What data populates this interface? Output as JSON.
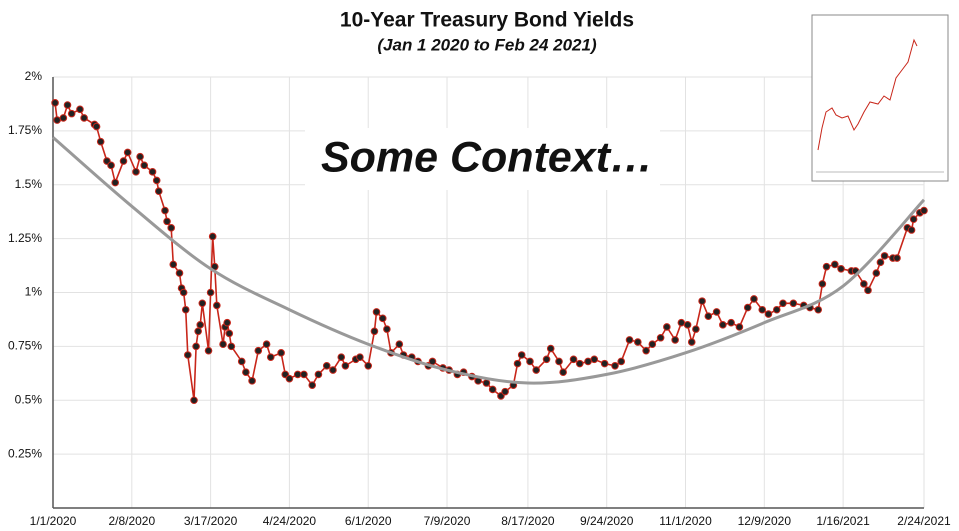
{
  "chart_data": {
    "type": "line",
    "title": "10-Year Treasury Bond Yields",
    "subtitle": "(Jan 1 2020 to Feb 24 2021)",
    "annotation": "Some Context…",
    "xlim": [
      "1/1/2020",
      "2/24/2021"
    ],
    "xticks": [
      "1/1/2020",
      "2/8/2020",
      "3/17/2020",
      "4/24/2020",
      "6/1/2020",
      "7/9/2020",
      "8/17/2020",
      "9/24/2020",
      "11/1/2020",
      "12/9/2020",
      "1/16/2021",
      "2/24/2021"
    ],
    "ylim": [
      0,
      2
    ],
    "yticks": [
      {
        "value": 0.25,
        "label": "0.25%"
      },
      {
        "value": 0.5,
        "label": "0.5%"
      },
      {
        "value": 0.75,
        "label": "0.75%"
      },
      {
        "value": 1,
        "label": "1%"
      },
      {
        "value": 1.25,
        "label": "1.25%"
      },
      {
        "value": 1.5,
        "label": "1.5%"
      },
      {
        "value": 1.75,
        "label": "1.75%"
      },
      {
        "value": 2,
        "label": "2%"
      }
    ],
    "grid": true,
    "series": [
      {
        "color": "#c8261a",
        "markers": true,
        "x": [
          "1/2/2020",
          "1/3/2020",
          "1/6/2020",
          "1/8/2020",
          "1/10/2020",
          "1/14/2020",
          "1/16/2020",
          "1/21/2020",
          "1/22/2020",
          "1/24/2020",
          "1/27/2020",
          "1/29/2020",
          "1/31/2020",
          "2/4/2020",
          "2/6/2020",
          "2/10/2020",
          "2/12/2020",
          "2/14/2020",
          "2/18/2020",
          "2/20/2020",
          "2/21/2020",
          "2/24/2020",
          "2/25/2020",
          "2/27/2020",
          "2/28/2020",
          "3/2/2020",
          "3/3/2020",
          "3/4/2020",
          "3/5/2020",
          "3/6/2020",
          "3/9/2020",
          "3/10/2020",
          "3/11/2020",
          "3/12/2020",
          "3/13/2020",
          "3/16/2020",
          "3/17/2020",
          "3/18/2020",
          "3/19/2020",
          "3/20/2020",
          "3/23/2020",
          "3/24/2020",
          "3/25/2020",
          "3/26/2020",
          "3/27/2020",
          "4/1/2020",
          "4/3/2020",
          "4/6/2020",
          "4/9/2020",
          "4/13/2020",
          "4/15/2020",
          "4/20/2020",
          "4/22/2020",
          "4/24/2020",
          "4/28/2020",
          "5/1/2020",
          "5/5/2020",
          "5/8/2020",
          "5/12/2020",
          "5/15/2020",
          "5/19/2020",
          "5/21/2020",
          "5/26/2020",
          "5/28/2020",
          "6/1/2020",
          "6/4/2020",
          "6/5/2020",
          "6/8/2020",
          "6/10/2020",
          "6/12/2020",
          "6/16/2020",
          "6/18/2020",
          "6/22/2020",
          "6/25/2020",
          "6/30/2020",
          "7/2/2020",
          "7/7/2020",
          "7/10/2020",
          "7/14/2020",
          "7/17/2020",
          "7/21/2020",
          "7/24/2020",
          "7/28/2020",
          "7/31/2020",
          "8/4/2020",
          "8/6/2020",
          "8/10/2020",
          "8/12/2020",
          "8/14/2020",
          "8/18/2020",
          "8/21/2020",
          "8/26/2020",
          "8/28/2020",
          "9/1/2020",
          "9/3/2020",
          "9/8/2020",
          "9/11/2020",
          "9/15/2020",
          "9/18/2020",
          "9/23/2020",
          "9/28/2020",
          "10/1/2020",
          "10/5/2020",
          "10/9/2020",
          "10/13/2020",
          "10/16/2020",
          "10/20/2020",
          "10/23/2020",
          "10/27/2020",
          "10/30/2020",
          "11/2/2020",
          "11/4/2020",
          "11/6/2020",
          "11/9/2020",
          "11/12/2020",
          "11/16/2020",
          "11/19/2020",
          "11/23/2020",
          "11/27/2020",
          "12/1/2020",
          "12/4/2020",
          "12/8/2020",
          "12/11/2020",
          "12/15/2020",
          "12/18/2020",
          "12/23/2020",
          "12/28/2020",
          "12/31/2020",
          "1/4/2021",
          "1/6/2021",
          "1/8/2021",
          "1/12/2021",
          "1/15/2021",
          "1/20/2021",
          "1/22/2021",
          "1/26/2021",
          "1/28/2021",
          "2/1/2021",
          "2/3/2021",
          "2/5/2021",
          "2/9/2021",
          "2/11/2021",
          "2/16/2021",
          "2/18/2021",
          "2/19/2021",
          "2/22/2021",
          "2/24/2021"
        ],
        "values": [
          1.88,
          1.8,
          1.81,
          1.87,
          1.83,
          1.85,
          1.81,
          1.78,
          1.77,
          1.7,
          1.61,
          1.59,
          1.51,
          1.61,
          1.65,
          1.56,
          1.63,
          1.59,
          1.56,
          1.52,
          1.47,
          1.38,
          1.33,
          1.3,
          1.13,
          1.09,
          1.02,
          1.0,
          0.92,
          0.71,
          0.5,
          0.75,
          0.82,
          0.85,
          0.95,
          0.73,
          1.0,
          1.26,
          1.12,
          0.94,
          0.76,
          0.84,
          0.86,
          0.81,
          0.75,
          0.68,
          0.63,
          0.59,
          0.73,
          0.76,
          0.7,
          0.72,
          0.62,
          0.6,
          0.62,
          0.62,
          0.57,
          0.62,
          0.66,
          0.64,
          0.7,
          0.66,
          0.69,
          0.7,
          0.66,
          0.82,
          0.91,
          0.88,
          0.83,
          0.72,
          0.76,
          0.71,
          0.7,
          0.68,
          0.66,
          0.68,
          0.65,
          0.64,
          0.62,
          0.63,
          0.61,
          0.59,
          0.58,
          0.55,
          0.52,
          0.54,
          0.57,
          0.67,
          0.71,
          0.68,
          0.64,
          0.69,
          0.74,
          0.68,
          0.63,
          0.69,
          0.67,
          0.68,
          0.69,
          0.67,
          0.66,
          0.68,
          0.78,
          0.77,
          0.73,
          0.76,
          0.79,
          0.84,
          0.78,
          0.86,
          0.85,
          0.77,
          0.83,
          0.96,
          0.89,
          0.91,
          0.85,
          0.86,
          0.84,
          0.93,
          0.97,
          0.92,
          0.9,
          0.92,
          0.95,
          0.95,
          0.94,
          0.93,
          0.92,
          1.04,
          1.12,
          1.13,
          1.11,
          1.1,
          1.1,
          1.04,
          1.01,
          1.09,
          1.14,
          1.17,
          1.16,
          1.16,
          1.3,
          1.29,
          1.34,
          1.37,
          1.38
        ]
      },
      {
        "color": "#999999",
        "markers": false,
        "smooth": true,
        "x": [
          "1/1/2020",
          "2/8/2020",
          "3/17/2020",
          "4/24/2020",
          "6/1/2020",
          "7/9/2020",
          "8/17/2020",
          "9/24/2020",
          "11/1/2020",
          "12/9/2020",
          "1/16/2021",
          "2/24/2021"
        ],
        "values": [
          1.72,
          1.4,
          1.11,
          0.92,
          0.76,
          0.64,
          0.58,
          0.62,
          0.72,
          0.86,
          1.03,
          1.43
        ]
      }
    ]
  }
}
